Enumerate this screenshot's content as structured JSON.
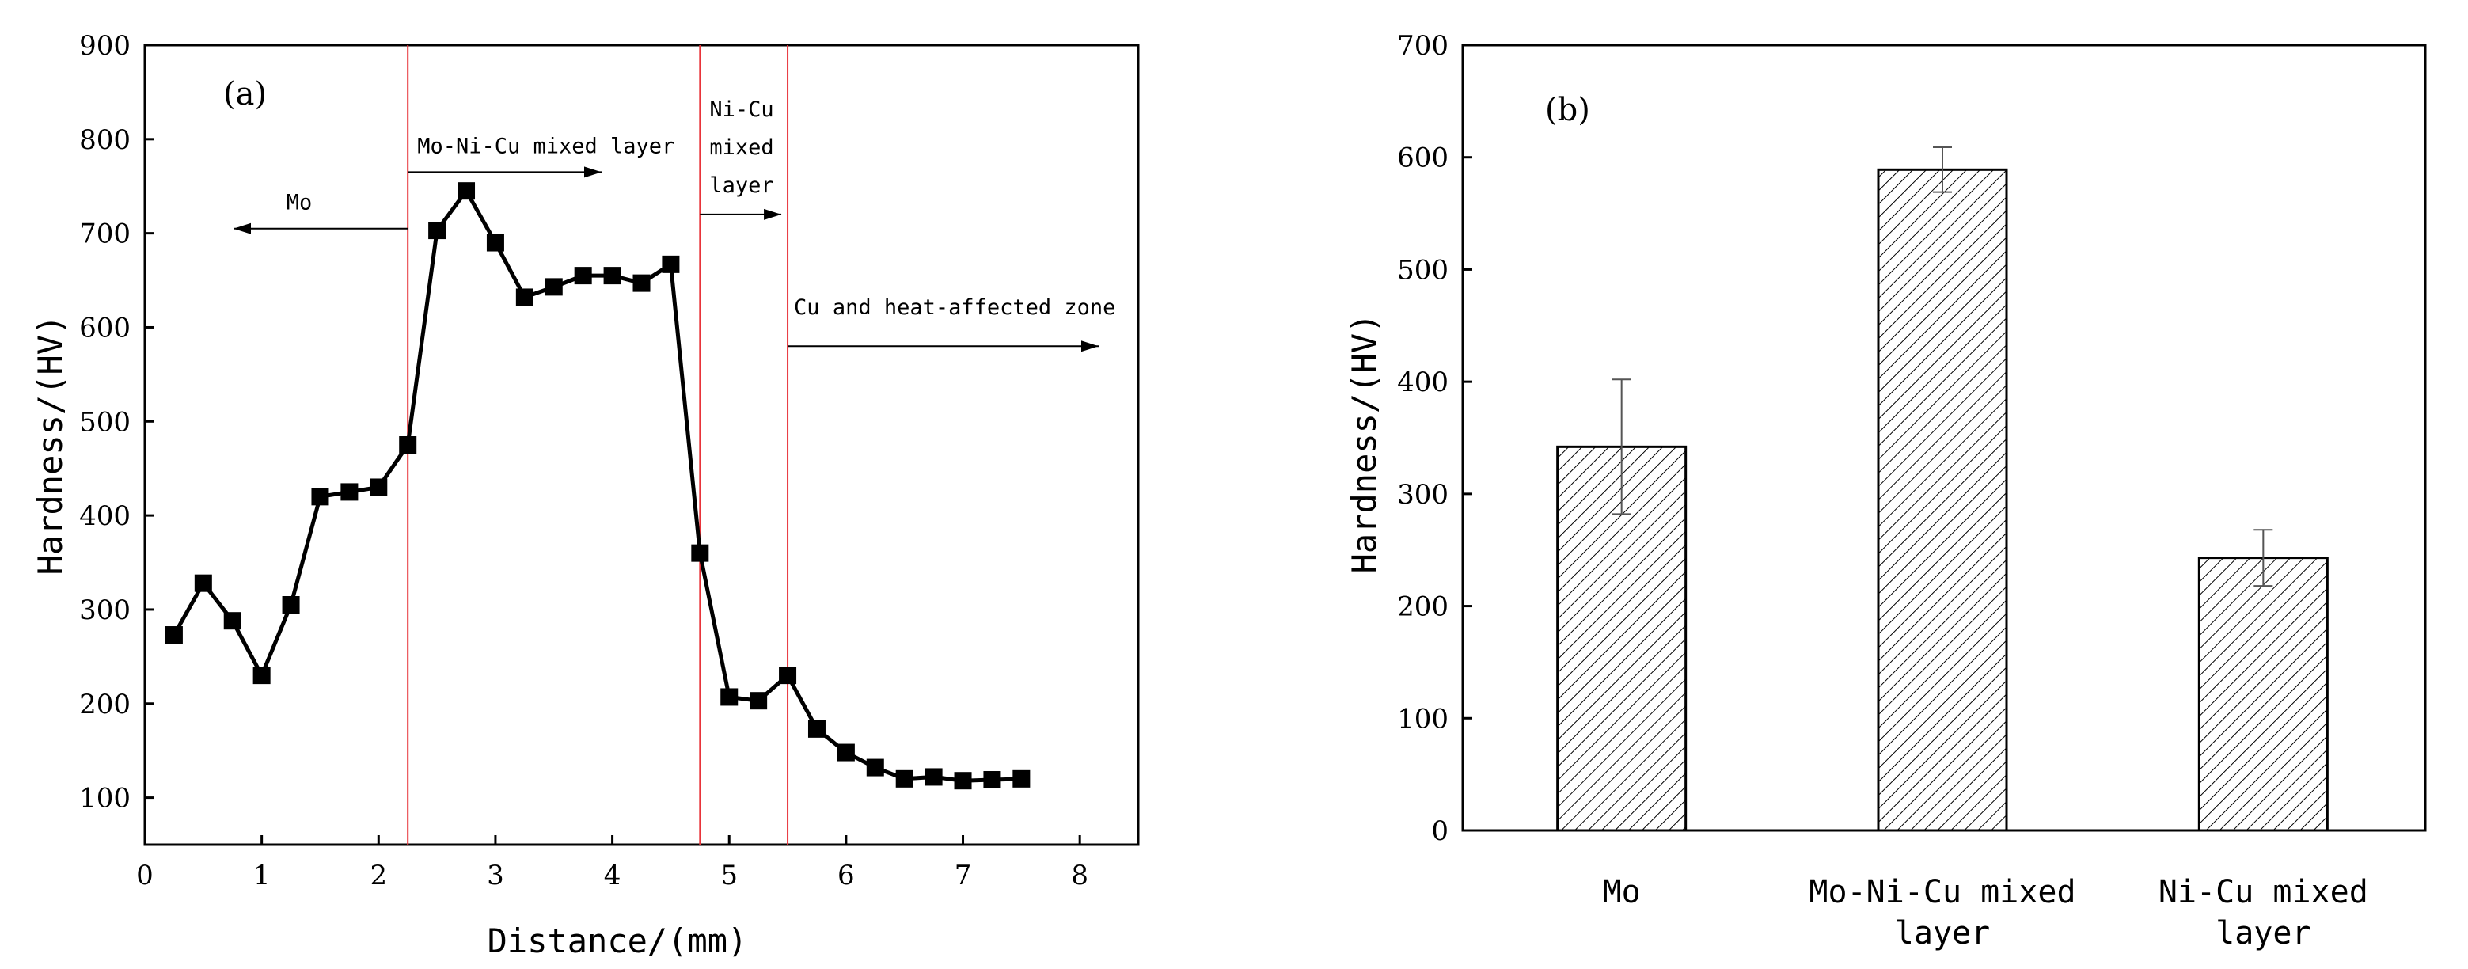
{
  "chart_data": [
    {
      "type": "line",
      "panel_label": "(a)",
      "xlabel": "Distance/(mm)",
      "ylabel": "Hardness/(HV)",
      "xlim": [
        0,
        8.5
      ],
      "ylim": [
        50,
        900
      ],
      "x_ticks": [
        0,
        1,
        2,
        3,
        4,
        5,
        6,
        7,
        8
      ],
      "y_ticks": [
        100,
        200,
        300,
        400,
        500,
        600,
        700,
        800,
        900
      ],
      "series": [
        {
          "name": "Hardness",
          "marker": "square",
          "color": "#000000",
          "x": [
            0.25,
            0.5,
            0.75,
            1.0,
            1.25,
            1.5,
            1.75,
            2.0,
            2.25,
            2.5,
            2.75,
            3.0,
            3.25,
            3.5,
            3.75,
            4.0,
            4.25,
            4.5,
            4.75,
            5.0,
            5.25,
            5.5,
            5.75,
            6.0,
            6.25,
            6.5,
            6.75,
            7.0,
            7.25,
            7.5
          ],
          "y": [
            273,
            328,
            288,
            230,
            305,
            420,
            425,
            430,
            475,
            703,
            745,
            690,
            632,
            643,
            655,
            655,
            647,
            667,
            360,
            207,
            203,
            230,
            173,
            148,
            132,
            120,
            122,
            118,
            119,
            120
          ]
        }
      ],
      "boundaries": {
        "x": [
          2.25,
          4.75,
          5.5
        ],
        "color": "#e8343a"
      },
      "annotations": [
        {
          "text": "Mo",
          "arrow": "left",
          "at_y": 705
        },
        {
          "text": "Mo-Ni-Cu mixed layer",
          "arrow": "right",
          "at_y": 765
        },
        {
          "text_lines": [
            "Ni-Cu",
            "mixed",
            "layer"
          ],
          "arrow": "right",
          "at_y": 720
        },
        {
          "text": "Cu and heat-affected zone",
          "arrow": "right",
          "at_y": 580
        }
      ]
    },
    {
      "type": "bar",
      "panel_label": "(b)",
      "xlabel": "",
      "ylabel": "Hardness/(HV)",
      "ylim": [
        0,
        700
      ],
      "y_ticks": [
        0,
        100,
        200,
        300,
        400,
        500,
        600,
        700
      ],
      "categories": [
        {
          "label_lines": [
            "Mo"
          ]
        },
        {
          "label_lines": [
            "Mo-Ni-Cu mixed",
            "layer"
          ]
        },
        {
          "label_lines": [
            "Ni-Cu mixed",
            "layer"
          ]
        }
      ],
      "values": [
        342,
        589,
        243
      ],
      "errors": [
        60,
        20,
        25
      ],
      "fill": "hatched"
    }
  ]
}
